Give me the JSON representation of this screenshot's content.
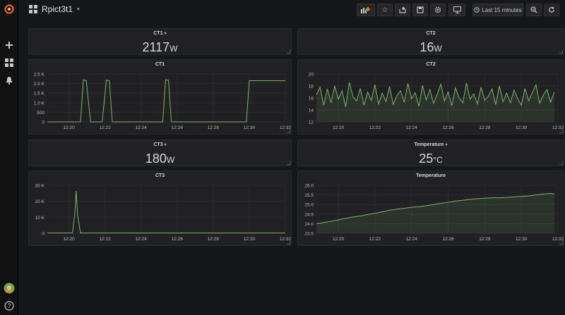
{
  "dashboard": {
    "title": "Rpict3t1"
  },
  "navbar": {
    "time_range": "Last 15 minutes"
  },
  "icons": {
    "logo": "grafana-logo-icon",
    "create": "plus-icon",
    "dashboards": "grid-icon",
    "alerting": "bell-icon",
    "user": "avatar-icon",
    "help": "question-icon",
    "add_panel": "add-panel-icon",
    "star": "star-icon",
    "share": "share-icon",
    "save": "save-icon",
    "settings": "gear-icon",
    "tv": "monitor-icon",
    "time": "clock-icon",
    "zoom": "zoom-out-icon",
    "refresh": "refresh-icon"
  },
  "colors": {
    "series": "#7eb26d",
    "background": "#161719",
    "panel": "#212124",
    "text": "#d8d9da"
  },
  "stats": [
    {
      "title": "CT1",
      "value": "2117",
      "unit": "W",
      "has_menu": true
    },
    {
      "title": "CT2",
      "value": "16",
      "unit": "W",
      "has_menu": false
    },
    {
      "title": "CT3",
      "value": "180",
      "unit": "W",
      "has_menu": true
    },
    {
      "title": "Temperature",
      "value": "25",
      "unit": "°C",
      "has_menu": true
    }
  ],
  "chart_data": [
    {
      "title": "CT1",
      "type": "line",
      "xticks": [
        "12:20",
        "12:22",
        "12:24",
        "12:26",
        "12:28",
        "12:30",
        "12:32"
      ],
      "yticks": [
        "0",
        "500",
        "1.0 K",
        "1.5 K",
        "2.0 K",
        "2.5 K"
      ],
      "ylim": [
        0,
        2500
      ],
      "xlim": [
        0,
        16.5
      ],
      "grid": true,
      "fill": false,
      "x": [
        0,
        2.3,
        2.5,
        2.7,
        3.0,
        3.2,
        3.8,
        4.1,
        4.3,
        4.5,
        8.0,
        8.2,
        8.4,
        8.6,
        13.8,
        14.0,
        16.5
      ],
      "y": [
        0,
        0,
        2200,
        2150,
        0,
        0,
        0,
        2180,
        2150,
        0,
        0,
        2200,
        2170,
        0,
        0,
        2150,
        2150
      ]
    },
    {
      "title": "CT2",
      "type": "line",
      "xticks": [
        "12:20",
        "12:22",
        "12:24",
        "12:26",
        "12:28",
        "12:30",
        "12:32"
      ],
      "yticks": [
        "12",
        "14",
        "16",
        "18",
        "20"
      ],
      "ylim": [
        12,
        20
      ],
      "xlim": [
        0,
        16.5
      ],
      "grid": true,
      "fill": true,
      "x": [
        0,
        0.25,
        0.5,
        0.75,
        1,
        1.25,
        1.5,
        1.75,
        2,
        2.25,
        2.5,
        2.75,
        3,
        3.25,
        3.5,
        3.75,
        4,
        4.25,
        4.5,
        4.75,
        5,
        5.25,
        5.5,
        5.75,
        6,
        6.25,
        6.5,
        6.75,
        7,
        7.25,
        7.5,
        7.75,
        8,
        8.25,
        8.5,
        8.75,
        9,
        9.25,
        9.5,
        9.75,
        10,
        10.25,
        10.5,
        10.75,
        11,
        11.25,
        11.5,
        11.75,
        12,
        12.25,
        12.5,
        12.75,
        13,
        13.25,
        13.5,
        13.75,
        14,
        14.25,
        14.5,
        14.75,
        15,
        15.25,
        15.5,
        15.75,
        16,
        16.25
      ],
      "y": [
        16.5,
        17.8,
        14.8,
        17.5,
        15.2,
        18.0,
        15.8,
        17.2,
        14.5,
        18.6,
        16.2,
        15.5,
        17.6,
        14.8,
        17.0,
        15.6,
        18.2,
        15.0,
        16.8,
        15.4,
        17.9,
        14.9,
        16.4,
        17.2,
        15.3,
        18.4,
        15.9,
        16.9,
        14.6,
        18.1,
        15.7,
        17.4,
        15.1,
        16.6,
        18.3,
        15.5,
        17.0,
        14.7,
        17.7,
        16.0,
        15.2,
        18.5,
        15.8,
        16.7,
        15.0,
        17.8,
        15.6,
        16.3,
        17.5,
        14.9,
        18.0,
        15.4,
        16.8,
        15.2,
        17.3,
        15.9,
        14.8,
        17.6,
        15.5,
        16.9,
        18.2,
        15.1,
        16.5,
        17.4,
        15.3,
        17.0
      ]
    },
    {
      "title": "CT3",
      "type": "line",
      "xticks": [
        "12:20",
        "12:22",
        "12:24",
        "12:26",
        "12:28",
        "12:30",
        "12:32"
      ],
      "yticks": [
        "0",
        "10 K",
        "20 K",
        "30 K"
      ],
      "ylim": [
        0,
        30000
      ],
      "xlim": [
        0,
        16.5
      ],
      "grid": true,
      "fill": false,
      "x": [
        0,
        1.75,
        1.9,
        2.0,
        2.1,
        2.3,
        16.5
      ],
      "y": [
        150,
        150,
        12000,
        26500,
        11000,
        180,
        180
      ]
    },
    {
      "title": "Temperature",
      "type": "area",
      "xticks": [
        "12:20",
        "12:22",
        "12:24",
        "12:26",
        "12:28",
        "12:30",
        "12:32"
      ],
      "yticks": [
        "23.5",
        "24.0",
        "24.5",
        "25.0",
        "25.5",
        "26.0"
      ],
      "ylim": [
        23.5,
        26.0
      ],
      "xlim": [
        0,
        16.5
      ],
      "grid": true,
      "fill": true,
      "x": [
        0,
        0.5,
        1.0,
        1.5,
        2.0,
        2.5,
        3.0,
        3.5,
        4.0,
        4.5,
        5.0,
        5.5,
        6.0,
        6.5,
        7.0,
        7.5,
        8.0,
        8.5,
        9.0,
        9.5,
        10.0,
        10.5,
        11.0,
        11.5,
        12.0,
        12.5,
        13.0,
        13.5,
        14.0,
        14.5,
        15.0,
        15.5,
        16.0,
        16.25
      ],
      "y": [
        24.0,
        24.06,
        24.12,
        24.2,
        24.28,
        24.35,
        24.4,
        24.48,
        24.54,
        24.62,
        24.7,
        24.76,
        24.8,
        24.86,
        24.88,
        24.94,
        25.0,
        25.06,
        25.12,
        25.18,
        25.22,
        25.27,
        25.3,
        25.33,
        25.35,
        25.35,
        25.37,
        25.4,
        25.42,
        25.45,
        25.5,
        25.55,
        25.58,
        25.55
      ]
    }
  ]
}
